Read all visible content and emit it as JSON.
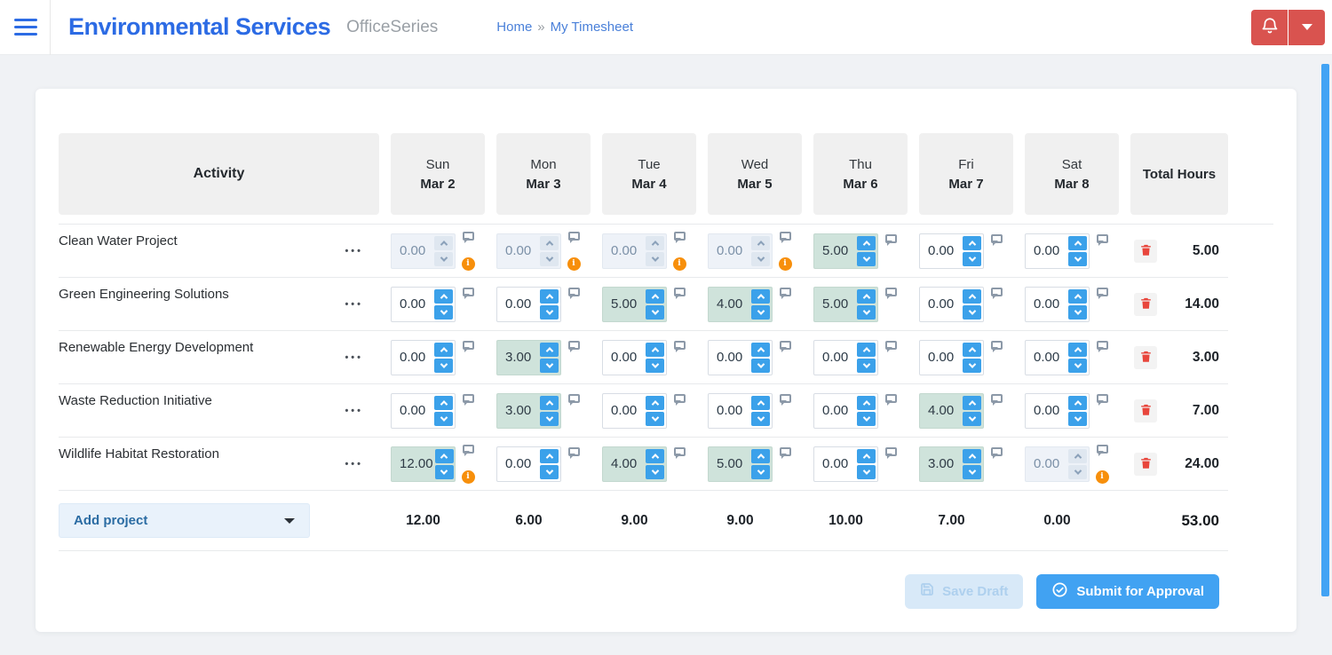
{
  "header": {
    "title": "Environmental Services",
    "subtitle": "OfficeSeries",
    "breadcrumb": {
      "home": "Home",
      "separator": "»",
      "current": "My Timesheet"
    }
  },
  "icons": {
    "menu": "hamburger-menu",
    "notifications": "bell",
    "account": "chevron-down",
    "comment": "speech-bubble",
    "warning": "info-circle",
    "delete": "trash",
    "save": "floppy-disk",
    "submit": "check-circle",
    "spinner_up": "chevron-up",
    "spinner_down": "chevron-down"
  },
  "colors": {
    "brand_blue": "#2c6be4",
    "accent_blue": "#3ba1ea",
    "danger_red": "#d9534f",
    "trash_red": "#e8463c",
    "warning_orange": "#f78f0b",
    "filled_cell_teal": "#cfe3db",
    "disabled_cell": "#eef2f8",
    "scrollbar_blue": "#42a3f4"
  },
  "table": {
    "headers": {
      "activity": "Activity",
      "days": [
        {
          "day": "Sun",
          "date": "Mar 2"
        },
        {
          "day": "Mon",
          "date": "Mar 3"
        },
        {
          "day": "Tue",
          "date": "Mar 4"
        },
        {
          "day": "Wed",
          "date": "Mar 5"
        },
        {
          "day": "Thu",
          "date": "Mar 6"
        },
        {
          "day": "Fri",
          "date": "Mar 7"
        },
        {
          "day": "Sat",
          "date": "Mar 8"
        }
      ],
      "total": "Total Hours"
    },
    "row_menu_glyph": "•••",
    "warning_glyph": "i",
    "rows": [
      {
        "name": "Clean Water Project",
        "total": "5.00",
        "cells": [
          {
            "value": "0.00",
            "state": "disabled",
            "warning": true
          },
          {
            "value": "0.00",
            "state": "disabled",
            "warning": true
          },
          {
            "value": "0.00",
            "state": "disabled",
            "warning": true
          },
          {
            "value": "0.00",
            "state": "disabled",
            "warning": true
          },
          {
            "value": "5.00",
            "state": "filled",
            "warning": false
          },
          {
            "value": "0.00",
            "state": "normal",
            "warning": false
          },
          {
            "value": "0.00",
            "state": "normal",
            "warning": false
          }
        ]
      },
      {
        "name": "Green Engineering Solutions",
        "total": "14.00",
        "cells": [
          {
            "value": "0.00",
            "state": "normal",
            "warning": false
          },
          {
            "value": "0.00",
            "state": "normal",
            "warning": false
          },
          {
            "value": "5.00",
            "state": "filled",
            "warning": false
          },
          {
            "value": "4.00",
            "state": "filled",
            "warning": false
          },
          {
            "value": "5.00",
            "state": "filled",
            "warning": false
          },
          {
            "value": "0.00",
            "state": "normal",
            "warning": false
          },
          {
            "value": "0.00",
            "state": "normal",
            "warning": false
          }
        ]
      },
      {
        "name": "Renewable Energy Development",
        "total": "3.00",
        "cells": [
          {
            "value": "0.00",
            "state": "normal",
            "warning": false
          },
          {
            "value": "3.00",
            "state": "filled",
            "warning": false
          },
          {
            "value": "0.00",
            "state": "normal",
            "warning": false
          },
          {
            "value": "0.00",
            "state": "normal",
            "warning": false
          },
          {
            "value": "0.00",
            "state": "normal",
            "warning": false
          },
          {
            "value": "0.00",
            "state": "normal",
            "warning": false
          },
          {
            "value": "0.00",
            "state": "normal",
            "warning": false
          }
        ]
      },
      {
        "name": "Waste Reduction Initiative",
        "total": "7.00",
        "cells": [
          {
            "value": "0.00",
            "state": "normal",
            "warning": false
          },
          {
            "value": "3.00",
            "state": "filled",
            "warning": false
          },
          {
            "value": "0.00",
            "state": "normal",
            "warning": false
          },
          {
            "value": "0.00",
            "state": "normal",
            "warning": false
          },
          {
            "value": "0.00",
            "state": "normal",
            "warning": false
          },
          {
            "value": "4.00",
            "state": "filled",
            "warning": false
          },
          {
            "value": "0.00",
            "state": "normal",
            "warning": false
          }
        ]
      },
      {
        "name": "Wildlife Habitat Restoration",
        "total": "24.00",
        "cells": [
          {
            "value": "12.00",
            "state": "filled",
            "warning": true
          },
          {
            "value": "0.00",
            "state": "normal",
            "warning": false
          },
          {
            "value": "4.00",
            "state": "filled",
            "warning": false
          },
          {
            "value": "5.00",
            "state": "filled",
            "warning": false
          },
          {
            "value": "0.00",
            "state": "normal",
            "warning": false
          },
          {
            "value": "3.00",
            "state": "filled",
            "warning": false
          },
          {
            "value": "0.00",
            "state": "disabled",
            "warning": true
          }
        ]
      }
    ],
    "footer": {
      "add_project_label": "Add project",
      "day_totals": [
        "12.00",
        "6.00",
        "9.00",
        "9.00",
        "10.00",
        "7.00",
        "0.00"
      ],
      "grand_total": "53.00"
    }
  },
  "actions": {
    "save_draft": "Save Draft",
    "submit": "Submit for Approval"
  }
}
